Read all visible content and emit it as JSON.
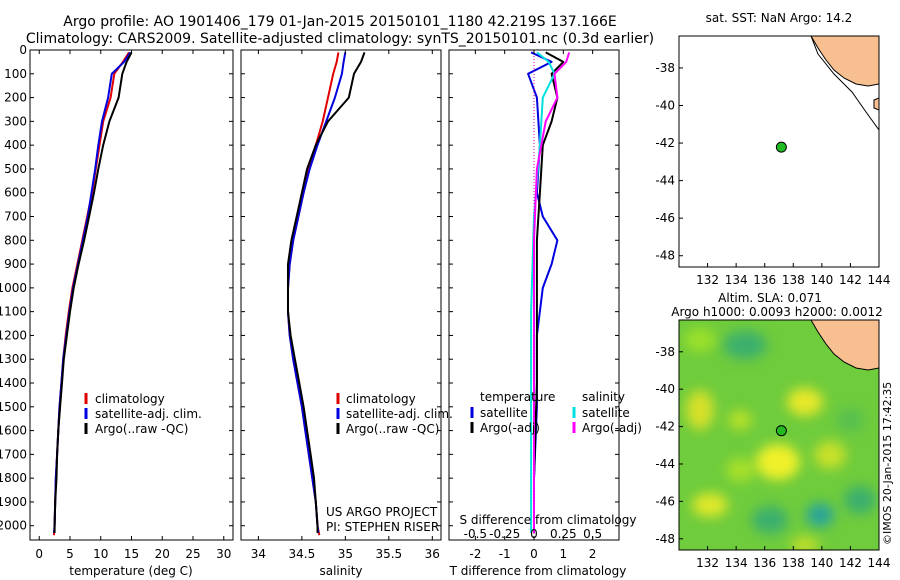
{
  "header": {
    "line1": "Argo profile: AO 1901406_179 01-Jan-2015 20150101_1180 42.219S 137.166E",
    "line2": "Climatology: CARS2009. Satellite-adjusted climatology: synTS_20150101.nc (0.3d earlier)"
  },
  "colors": {
    "climatology": "#e00000",
    "satellite": "#0000e0",
    "argo": "#000000",
    "salinity_satellite": "#00e0e0",
    "salinity_argo": "#ff00ff",
    "land": "#f8c090",
    "marker": "#22bb22"
  },
  "depth_axis": {
    "ylim": [
      0,
      2060
    ],
    "ticks": [
      0,
      100,
      200,
      300,
      400,
      500,
      600,
      700,
      800,
      900,
      1000,
      1100,
      1200,
      1300,
      1400,
      1500,
      1600,
      1700,
      1800,
      1900,
      2000
    ]
  },
  "chart_data": [
    {
      "type": "line",
      "id": "temperature",
      "xlabel": "temperature (deg C)",
      "xlim": [
        -1.5,
        31.5
      ],
      "xticks": [
        0,
        5,
        10,
        15,
        20,
        25,
        30
      ],
      "legend": [
        "climatology",
        "satellite-adj. clim.",
        "Argo(..raw -QC)"
      ],
      "series": [
        {
          "name": "climatology",
          "color": "#e00000",
          "points": [
            [
              14.6,
              10
            ],
            [
              13.6,
              50
            ],
            [
              12.2,
              100
            ],
            [
              11.6,
              200
            ],
            [
              10.4,
              300
            ],
            [
              9.8,
              400
            ],
            [
              9.2,
              500
            ],
            [
              8.6,
              600
            ],
            [
              7.8,
              700
            ],
            [
              7.0,
              800
            ],
            [
              6.2,
              900
            ],
            [
              5.4,
              1000
            ],
            [
              4.8,
              1100
            ],
            [
              4.3,
              1200
            ],
            [
              3.9,
              1300
            ],
            [
              3.6,
              1400
            ],
            [
              3.3,
              1500
            ],
            [
              3.1,
              1600
            ],
            [
              2.9,
              1700
            ],
            [
              2.7,
              1800
            ],
            [
              2.6,
              1900
            ],
            [
              2.5,
              2000
            ],
            [
              2.4,
              2040
            ]
          ]
        },
        {
          "name": "satellite-adj. clim.",
          "color": "#0000e0",
          "points": [
            [
              14.8,
              10
            ],
            [
              13.8,
              50
            ],
            [
              11.8,
              100
            ],
            [
              11.2,
              200
            ],
            [
              10.2,
              300
            ],
            [
              9.6,
              400
            ],
            [
              9.1,
              500
            ],
            [
              8.5,
              600
            ],
            [
              7.9,
              700
            ],
            [
              7.1,
              800
            ],
            [
              6.3,
              900
            ],
            [
              5.5,
              1000
            ],
            [
              4.9,
              1100
            ],
            [
              4.4,
              1200
            ],
            [
              3.9,
              1300
            ],
            [
              3.6,
              1400
            ],
            [
              3.3,
              1500
            ],
            [
              3.1,
              1600
            ],
            [
              2.9,
              1700
            ],
            [
              2.7,
              1800
            ],
            [
              2.6,
              1900
            ],
            [
              2.5,
              2000
            ],
            [
              2.4,
              2030
            ]
          ]
        },
        {
          "name": "Argo(..raw -QC)",
          "color": "#000000",
          "points": [
            [
              15.0,
              10
            ],
            [
              14.2,
              50
            ],
            [
              13.5,
              100
            ],
            [
              12.9,
              200
            ],
            [
              11.4,
              300
            ],
            [
              10.4,
              400
            ],
            [
              9.6,
              500
            ],
            [
              8.9,
              600
            ],
            [
              8.1,
              700
            ],
            [
              7.3,
              800
            ],
            [
              6.4,
              900
            ],
            [
              5.6,
              1000
            ],
            [
              5.0,
              1100
            ],
            [
              4.5,
              1200
            ],
            [
              4.0,
              1300
            ],
            [
              3.7,
              1400
            ],
            [
              3.4,
              1500
            ],
            [
              3.1,
              1600
            ],
            [
              2.9,
              1700
            ],
            [
              2.8,
              1800
            ],
            [
              2.6,
              1900
            ],
            [
              2.5,
              2000
            ],
            [
              2.5,
              2030
            ]
          ]
        }
      ]
    },
    {
      "type": "line",
      "id": "salinity",
      "xlabel": "salinity",
      "xlim": [
        33.8,
        36.1
      ],
      "xticks": [
        34,
        34.5,
        35,
        35.5,
        36
      ],
      "xtick_labels": [
        "34",
        "34.5",
        "35",
        "35.5",
        "36"
      ],
      "legend": [
        "climatology",
        "satellite-adj. clim.",
        "Argo(..raw -QC)"
      ],
      "annotation": [
        "US ARGO PROJECT",
        "PI: STEPHEN RISER"
      ],
      "series": [
        {
          "name": "climatology",
          "color": "#e00000",
          "points": [
            [
              34.92,
              10
            ],
            [
              34.9,
              50
            ],
            [
              34.86,
              100
            ],
            [
              34.8,
              200
            ],
            [
              34.74,
              300
            ],
            [
              34.66,
              400
            ],
            [
              34.58,
              500
            ],
            [
              34.52,
              600
            ],
            [
              34.46,
              700
            ],
            [
              34.4,
              800
            ],
            [
              34.36,
              900
            ],
            [
              34.34,
              1000
            ],
            [
              34.34,
              1100
            ],
            [
              34.36,
              1200
            ],
            [
              34.4,
              1300
            ],
            [
              34.45,
              1400
            ],
            [
              34.5,
              1500
            ],
            [
              34.54,
              1600
            ],
            [
              34.58,
              1700
            ],
            [
              34.62,
              1800
            ],
            [
              34.66,
              1900
            ],
            [
              34.68,
              2000
            ],
            [
              34.7,
              2040
            ]
          ]
        },
        {
          "name": "satellite-adj. clim.",
          "color": "#0000e0",
          "points": [
            [
              35.0,
              10
            ],
            [
              34.98,
              50
            ],
            [
              34.96,
              100
            ],
            [
              34.88,
              200
            ],
            [
              34.78,
              300
            ],
            [
              34.68,
              400
            ],
            [
              34.59,
              500
            ],
            [
              34.52,
              600
            ],
            [
              34.46,
              700
            ],
            [
              34.4,
              800
            ],
            [
              34.36,
              900
            ],
            [
              34.34,
              1000
            ],
            [
              34.34,
              1100
            ],
            [
              34.36,
              1200
            ],
            [
              34.4,
              1300
            ],
            [
              34.45,
              1400
            ],
            [
              34.5,
              1500
            ],
            [
              34.54,
              1600
            ],
            [
              34.58,
              1700
            ],
            [
              34.62,
              1800
            ],
            [
              34.66,
              1900
            ],
            [
              34.68,
              2000
            ],
            [
              34.69,
              2030
            ]
          ]
        },
        {
          "name": "Argo(..raw -QC)",
          "color": "#000000",
          "points": [
            [
              35.22,
              10
            ],
            [
              35.18,
              50
            ],
            [
              35.1,
              100
            ],
            [
              35.04,
              200
            ],
            [
              34.8,
              300
            ],
            [
              34.66,
              400
            ],
            [
              34.56,
              500
            ],
            [
              34.5,
              600
            ],
            [
              34.44,
              700
            ],
            [
              34.38,
              800
            ],
            [
              34.34,
              900
            ],
            [
              34.34,
              1000
            ],
            [
              34.34,
              1100
            ],
            [
              34.37,
              1200
            ],
            [
              34.42,
              1300
            ],
            [
              34.47,
              1400
            ],
            [
              34.52,
              1500
            ],
            [
              34.56,
              1600
            ],
            [
              34.6,
              1700
            ],
            [
              34.64,
              1800
            ],
            [
              34.66,
              1900
            ],
            [
              34.68,
              2000
            ],
            [
              34.68,
              2030
            ]
          ]
        }
      ]
    },
    {
      "type": "line",
      "id": "difference",
      "xlabel": "T difference from climatology",
      "xlabel_top": "S difference from climatology",
      "xlim": [
        -2.9,
        2.9
      ],
      "xticks": [
        -2,
        -1,
        0,
        1,
        2
      ],
      "top_ticks": [
        -0.5,
        -0.25,
        0,
        0.25,
        0.5
      ],
      "top_tick_labels": [
        "-0.5",
        "-0.25",
        "0",
        "0.25",
        "0.5"
      ],
      "legend_headers": [
        "temperature",
        "salinity"
      ],
      "legend": [
        "satellite",
        "Argo(-adj)",
        "satellite",
        "Argo(-adj)"
      ],
      "series": [
        {
          "name": "temperature satellite",
          "color": "#0000e0",
          "points": [
            [
              -0.1,
              10
            ],
            [
              0.6,
              50
            ],
            [
              -0.2,
              100
            ],
            [
              0.1,
              200
            ],
            [
              0.2,
              400
            ],
            [
              0.1,
              600
            ],
            [
              0.3,
              700
            ],
            [
              0.8,
              800
            ],
            [
              0.6,
              900
            ],
            [
              0.3,
              1000
            ],
            [
              0.1,
              1200
            ],
            [
              0.1,
              1500
            ],
            [
              0.0,
              1800
            ],
            [
              0.0,
              2030
            ]
          ]
        },
        {
          "name": "temperature Argo(-adj)",
          "color": "#000000",
          "points": [
            [
              0.4,
              10
            ],
            [
              1.0,
              50
            ],
            [
              0.6,
              100
            ],
            [
              0.8,
              200
            ],
            [
              0.6,
              300
            ],
            [
              0.3,
              400
            ],
            [
              0.2,
              600
            ],
            [
              0.1,
              800
            ],
            [
              0.1,
              1000
            ],
            [
              0.1,
              1400
            ],
            [
              0.0,
              1800
            ],
            [
              0.0,
              2030
            ]
          ]
        },
        {
          "name": "salinity satellite",
          "color": "#00e0e0",
          "points": [
            [
              0.1,
              10
            ],
            [
              0.5,
              50
            ],
            [
              0.7,
              100
            ],
            [
              0.3,
              200
            ],
            [
              0.2,
              400
            ],
            [
              0.0,
              700
            ],
            [
              -0.1,
              1100
            ],
            [
              -0.1,
              1500
            ],
            [
              -0.1,
              2030
            ]
          ]
        },
        {
          "name": "salinity Argo(-adj)",
          "color": "#ff00ff",
          "points": [
            [
              1.2,
              10
            ],
            [
              1.1,
              50
            ],
            [
              0.7,
              100
            ],
            [
              0.8,
              200
            ],
            [
              0.4,
              300
            ],
            [
              0.1,
              500
            ],
            [
              0.0,
              800
            ],
            [
              0.0,
              1200
            ],
            [
              0.0,
              2030
            ]
          ]
        }
      ]
    },
    {
      "type": "scatter",
      "id": "map-sst",
      "title": "sat. SST: NaN Argo: 14.2",
      "xlim": [
        130,
        144
      ],
      "ylim": [
        -48.6,
        -36.3
      ],
      "xticks": [
        132,
        134,
        136,
        138,
        140,
        142,
        144
      ],
      "yticks": [
        -38,
        -40,
        -42,
        -44,
        -46,
        -48
      ],
      "points": [
        {
          "x": 137.166,
          "y": -42.219
        }
      ]
    },
    {
      "type": "heatmap",
      "id": "map-sla",
      "title": "Altim. SLA: 0.071",
      "subtitle": "Argo h1000: 0.0093 h2000: 0.0012",
      "xlim": [
        130,
        144
      ],
      "ylim": [
        -48.6,
        -36.3
      ],
      "xticks": [
        132,
        134,
        136,
        138,
        140,
        142,
        144
      ],
      "yticks": [
        -38,
        -40,
        -42,
        -44,
        -46,
        -48
      ],
      "points": [
        {
          "x": 137.166,
          "y": -42.219
        }
      ]
    }
  ],
  "footer": {
    "credit": "©IMOS 20-Jan-2015 17:42:35"
  }
}
